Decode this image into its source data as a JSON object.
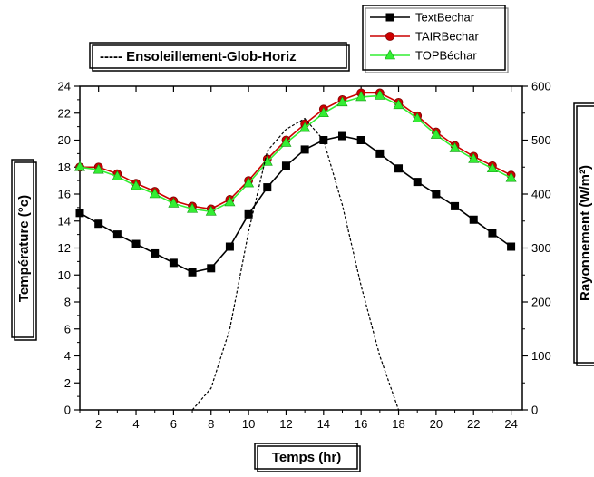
{
  "chart_data": {
    "type": "line",
    "title": "",
    "xlabel": "Temps (hr)",
    "ylabel_left": "Température (°c)",
    "ylabel_right": "Rayonnement (W/m²)",
    "x_ticks": [
      "2",
      "4",
      "6",
      "8",
      "10",
      "12",
      "14",
      "16",
      "18",
      "20",
      "22",
      "24"
    ],
    "y_ticks_left": [
      "0",
      "2",
      "4",
      "6",
      "8",
      "10",
      "12",
      "14",
      "16",
      "18",
      "20",
      "22",
      "24"
    ],
    "y_ticks_right": [
      "0",
      "100",
      "200",
      "300",
      "400",
      "500",
      "600"
    ],
    "xlim": [
      1,
      24.6
    ],
    "ylim_left": [
      0,
      24
    ],
    "ylim_right": [
      0,
      600
    ],
    "series": [
      {
        "name": "TextBechar",
        "axis": "left",
        "color": "#000000",
        "marker": "square",
        "x": [
          1,
          2,
          3,
          4,
          5,
          6,
          7,
          8,
          9,
          10,
          11,
          12,
          13,
          14,
          15,
          16,
          17,
          18,
          19,
          20,
          21,
          22,
          23,
          24
        ],
        "values": [
          14.6,
          13.8,
          13.0,
          12.3,
          11.6,
          10.9,
          10.2,
          10.5,
          12.1,
          14.5,
          16.5,
          18.1,
          19.3,
          20.0,
          20.3,
          20.0,
          19.0,
          17.9,
          16.9,
          16.0,
          15.1,
          14.1,
          13.1,
          12.1
        ]
      },
      {
        "name": "TAIRBechar",
        "axis": "left",
        "color": "#cc0000",
        "marker": "circle",
        "x": [
          1,
          2,
          3,
          4,
          5,
          6,
          7,
          8,
          9,
          10,
          11,
          12,
          13,
          14,
          15,
          16,
          17,
          18,
          19,
          20,
          21,
          22,
          23,
          24
        ],
        "values": [
          18.0,
          18.0,
          17.5,
          16.8,
          16.2,
          15.5,
          15.1,
          14.9,
          15.6,
          17.0,
          18.6,
          20.0,
          21.2,
          22.3,
          23.0,
          23.5,
          23.5,
          22.8,
          21.8,
          20.6,
          19.6,
          18.8,
          18.1,
          17.4
        ]
      },
      {
        "name": "TOPBéchar",
        "axis": "left",
        "color": "#33ee33",
        "marker": "triangle",
        "x": [
          1,
          2,
          3,
          4,
          5,
          6,
          7,
          8,
          9,
          10,
          11,
          12,
          13,
          14,
          15,
          16,
          17,
          18,
          19,
          20,
          21,
          22,
          23,
          24
        ],
        "values": [
          18.0,
          17.8,
          17.3,
          16.6,
          16.0,
          15.3,
          14.9,
          14.7,
          15.4,
          16.8,
          18.4,
          19.8,
          20.9,
          22.0,
          22.8,
          23.2,
          23.3,
          22.6,
          21.6,
          20.4,
          19.4,
          18.6,
          17.9,
          17.2
        ]
      },
      {
        "name": "Ensoleillement-Glob-Horiz",
        "axis": "right",
        "color": "#000000",
        "style": "dashed",
        "x": [
          7,
          8,
          9,
          10,
          11,
          12,
          13,
          14,
          15,
          16,
          17,
          18
        ],
        "values": [
          0,
          40,
          150,
          330,
          480,
          520,
          540,
          500,
          380,
          230,
          100,
          0
        ]
      }
    ],
    "legend": {
      "placement": "top-right",
      "entries": [
        "TextBechar",
        "TAIRBechar",
        "TOPBéchar"
      ]
    },
    "radiation_legend": "----- Ensoleillement-Glob-Horiz"
  }
}
